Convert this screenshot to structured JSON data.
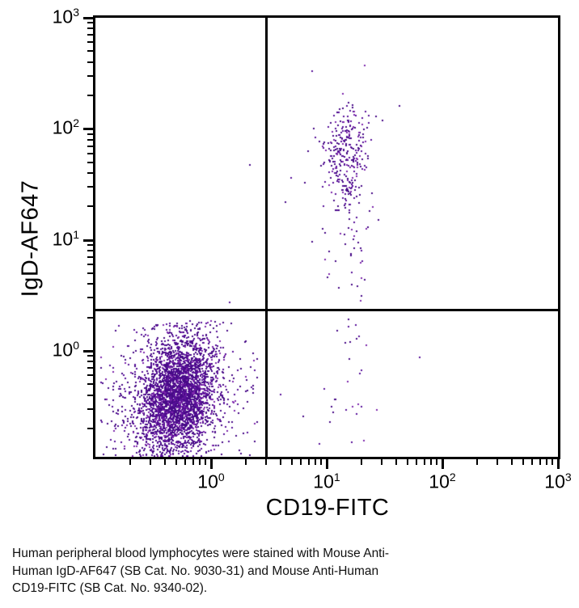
{
  "figure": {
    "caption": "Human peripheral blood lymphocytes were stained with Mouse Anti-\nHuman IgD-AF647 (SB Cat. No. 9030-31) and Mouse Anti-Human\nCD19-FITC (SB Cat. No. 9340-02)."
  },
  "chart_data": {
    "type": "scatter",
    "title": "",
    "xlabel": "CD19-FITC",
    "ylabel": "IgD-AF647",
    "x_scale": "log",
    "y_scale": "log",
    "x_log_range": [
      -1,
      3
    ],
    "y_log_range": [
      -0.954,
      3
    ],
    "x_ticks": [
      {
        "base": "10",
        "exp": "0",
        "log": 0
      },
      {
        "base": "10",
        "exp": "1",
        "log": 1
      },
      {
        "base": "10",
        "exp": "2",
        "log": 2
      },
      {
        "base": "10",
        "exp": "3",
        "log": 3
      }
    ],
    "y_ticks": [
      {
        "base": "10",
        "exp": "0",
        "log": 0
      },
      {
        "base": "10",
        "exp": "1",
        "log": 1
      },
      {
        "base": "10",
        "exp": "2",
        "log": 2
      },
      {
        "base": "10",
        "exp": "3",
        "log": 3
      }
    ],
    "minor_tick_decades": [
      -1,
      0,
      1,
      2
    ],
    "quadrant_gates": {
      "x_value": 3.0,
      "x_log": 0.477,
      "y_value": 2.3,
      "y_log": 0.371
    },
    "axis_color": "#000000",
    "dot_palette": [
      "#470a87",
      "#5a129b",
      "#7e27ad"
    ],
    "dot_palette_weights": [
      0.55,
      0.3,
      0.15
    ],
    "dot_size_px": 2,
    "seed": 20240515,
    "clusters": [
      {
        "name": "IgD-neg CD19-neg lymphocyte core",
        "center": [
          -0.295,
          -0.4
        ],
        "sigma": [
          0.155,
          0.27
        ],
        "corr": 0.25,
        "count": 2900,
        "clip": {
          "x_max": 0.42,
          "y_max": 0.28
        }
      },
      {
        "name": "IgD-neg CD19-neg lymphocyte halo",
        "center": [
          -0.34,
          -0.38
        ],
        "sigma": [
          0.36,
          0.43
        ],
        "corr": 0.2,
        "count": 800,
        "clip": {
          "x_max": 0.4,
          "y_max": 0.28
        }
      },
      {
        "name": "IgD-pos CD19-pos B-cell main",
        "center": [
          1.175,
          1.82
        ],
        "sigma": [
          0.095,
          0.21
        ],
        "corr": 0,
        "count": 235,
        "clip": {
          "y_min": 0.45
        }
      },
      {
        "name": "IgD-pos CD19-pos B-cell wide spread",
        "center": [
          1.05,
          1.7
        ],
        "sigma": [
          0.26,
          0.33
        ],
        "corr": 0,
        "count": 22,
        "clip": {
          "x_min": 0.55,
          "y_min": 0.45
        }
      },
      {
        "name": "IgD-pos CD19-pos B-cell lower tail",
        "center": [
          1.17,
          1.3
        ],
        "sigma": [
          0.12,
          0.36
        ],
        "corr": 0,
        "count": 70,
        "clip": {
          "y_min": 0.45
        }
      },
      {
        "name": "IgD-pos CD19-pos B-cell deep tail",
        "center": [
          1.16,
          0.8
        ],
        "sigma": [
          0.12,
          0.28
        ],
        "corr": 0,
        "count": 14,
        "clip": {
          "y_min": 0.45
        }
      },
      {
        "name": "IgD-neg CD19-pos scatter",
        "center": [
          1.17,
          -0.25
        ],
        "sigma": [
          0.14,
          0.4
        ],
        "corr": 0,
        "count": 32,
        "clip": {
          "y_max": 0.3
        }
      }
    ],
    "outlier_points_log": [
      [
        0.33,
        1.682
      ],
      [
        0.155,
        0.445
      ],
      [
        0.478,
        0.452
      ],
      [
        0.596,
        -0.386
      ]
    ]
  }
}
